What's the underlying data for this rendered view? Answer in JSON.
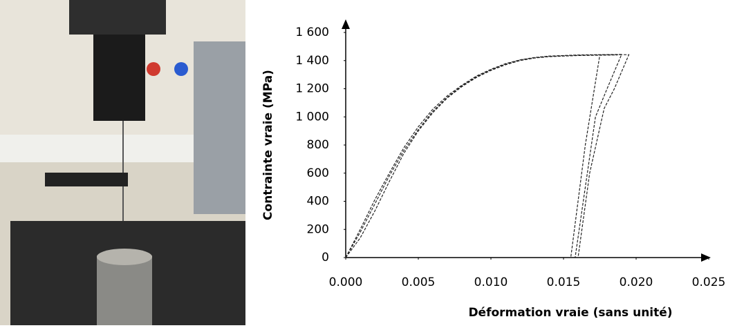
{
  "chart_data": {
    "type": "line",
    "xlabel": "Déformation vraie (sans unité)",
    "ylabel": "Contrainte vraie (MPa)",
    "xlim": [
      0,
      0.025
    ],
    "xticks": [
      {
        "value": 0,
        "label": "0.000"
      },
      {
        "value": 0.005,
        "label": "0.005"
      },
      {
        "value": 0.01,
        "label": "0.010"
      },
      {
        "value": 0.015,
        "label": "0.015"
      },
      {
        "value": 0.02,
        "label": "0.020"
      },
      {
        "value": 0.025,
        "label": "0.025"
      }
    ],
    "ylim": [
      0,
      1600
    ],
    "yticks": [
      0,
      200,
      400,
      600,
      800,
      {
        "value": 1000,
        "label": "1 000"
      },
      {
        "value": 1200,
        "label": "1 200"
      },
      {
        "value": 1400,
        "label": "1 400"
      },
      {
        "value": 1600,
        "label": "1 600"
      }
    ],
    "dashed": true,
    "series": [
      {
        "color": "#222222",
        "x": [
          0,
          0.001,
          0.002,
          0.003,
          0.004,
          0.005,
          0.006,
          0.007,
          0.008,
          0.009,
          0.01,
          0.011,
          0.012,
          0.013,
          0.014,
          0.016,
          0.018,
          0.0195,
          0.0185,
          0.0178,
          0.0168,
          0.016
        ],
        "values": [
          0,
          180,
          380,
          580,
          760,
          910,
          1040,
          1140,
          1220,
          1285,
          1335,
          1375,
          1405,
          1420,
          1430,
          1438,
          1442,
          1442,
          1200,
          1060,
          600,
          0
        ]
      },
      {
        "color": "#222222",
        "x": [
          0,
          0.001,
          0.002,
          0.003,
          0.004,
          0.005,
          0.006,
          0.007,
          0.008,
          0.009,
          0.01,
          0.011,
          0.012,
          0.013,
          0.014,
          0.016,
          0.0187,
          0.0175,
          0.0165,
          0.0155
        ],
        "values": [
          0,
          140,
          330,
          540,
          740,
          900,
          1030,
          1135,
          1215,
          1280,
          1330,
          1370,
          1400,
          1418,
          1428,
          1436,
          1440,
          1440,
          800,
          0
        ]
      },
      {
        "color": "#222222",
        "x": [
          0,
          0.001,
          0.002,
          0.003,
          0.004,
          0.005,
          0.006,
          0.007,
          0.008,
          0.009,
          0.01,
          0.011,
          0.012,
          0.013,
          0.014,
          0.016,
          0.019,
          0.018,
          0.0172,
          0.0165,
          0.0158
        ],
        "values": [
          0,
          200,
          410,
          600,
          780,
          930,
          1055,
          1150,
          1225,
          1290,
          1338,
          1378,
          1405,
          1422,
          1432,
          1440,
          1444,
          1200,
          1000,
          500,
          0
        ]
      }
    ]
  }
}
